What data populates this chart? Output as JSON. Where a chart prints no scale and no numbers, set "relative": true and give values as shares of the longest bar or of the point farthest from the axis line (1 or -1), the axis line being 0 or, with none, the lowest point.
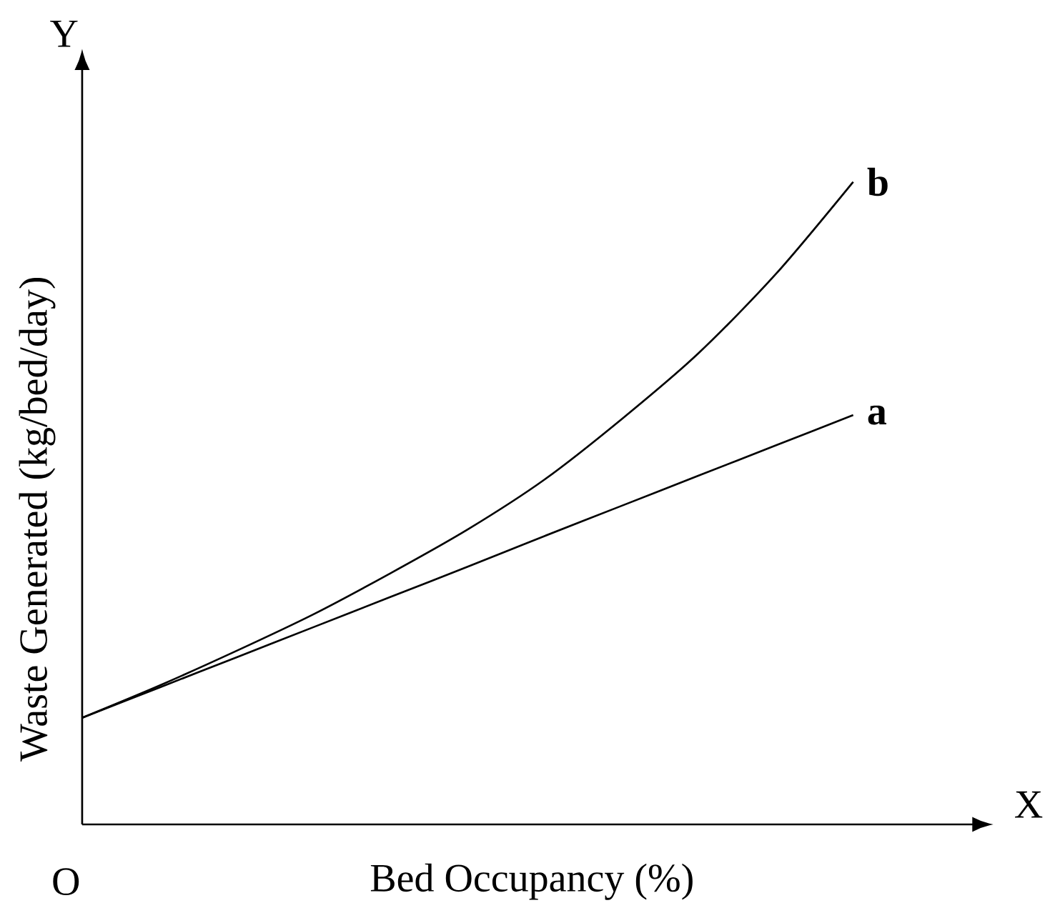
{
  "chart_data": {
    "type": "line",
    "relative": true,
    "xlabel": "Bed Occupancy (%)",
    "ylabel": "Waste Generated (kg/bed/day)",
    "annotations": [
      "Y",
      "X",
      "O"
    ],
    "categories": [
      null,
      null,
      null,
      null,
      null,
      null,
      null,
      null,
      null,
      null,
      null
    ],
    "series": [
      {
        "name": "a",
        "color": "#000000",
        "values": [
          0.166,
          0.213,
          0.26,
          0.307,
          0.354,
          0.401,
          0.449,
          0.496,
          0.543,
          0.59,
          0.637
        ]
      },
      {
        "name": "b",
        "color": "#000000",
        "values": [
          0.166,
          0.216,
          0.27,
          0.327,
          0.391,
          0.459,
          0.537,
          0.631,
          0.734,
          0.857,
          1.0
        ]
      }
    ]
  }
}
